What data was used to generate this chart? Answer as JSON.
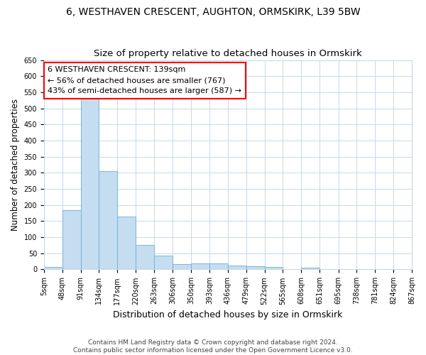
{
  "title": "6, WESTHAVEN CRESCENT, AUGHTON, ORMSKIRK, L39 5BW",
  "subtitle": "Size of property relative to detached houses in Ormskirk",
  "xlabel": "Distribution of detached houses by size in Ormskirk",
  "ylabel": "Number of detached properties",
  "footer_line1": "Contains HM Land Registry data © Crown copyright and database right 2024.",
  "footer_line2": "Contains public sector information licensed under the Open Government Licence v3.0.",
  "bin_edges": [
    5,
    48,
    91,
    134,
    177,
    220,
    263,
    306,
    350,
    393,
    436,
    479,
    522,
    565,
    608,
    651,
    695,
    738,
    781,
    824,
    867
  ],
  "bar_heights": [
    8,
    185,
    533,
    305,
    163,
    75,
    42,
    17,
    18,
    18,
    12,
    10,
    8,
    0,
    6,
    1,
    0,
    2,
    0,
    2
  ],
  "property_size": 139,
  "annotation_line1": "6 WESTHAVEN CRESCENT: 139sqm",
  "annotation_line2": "← 56% of detached houses are smaller (767)",
  "annotation_line3": "43% of semi-detached houses are larger (587) →",
  "bar_color": "#c5ddf0",
  "bar_edge_color": "#6aafd6",
  "annotation_box_facecolor": "white",
  "annotation_box_edgecolor": "red",
  "grid_color": "#c8d8ec",
  "background_color": "white",
  "plot_bg_color": "white",
  "ylim": [
    0,
    650
  ],
  "yticks": [
    0,
    50,
    100,
    150,
    200,
    250,
    300,
    350,
    400,
    450,
    500,
    550,
    600,
    650
  ],
  "title_fontsize": 10,
  "subtitle_fontsize": 9.5,
  "xlabel_fontsize": 9,
  "ylabel_fontsize": 8.5,
  "tick_fontsize": 7,
  "annotation_fontsize": 8,
  "footer_fontsize": 6.5
}
